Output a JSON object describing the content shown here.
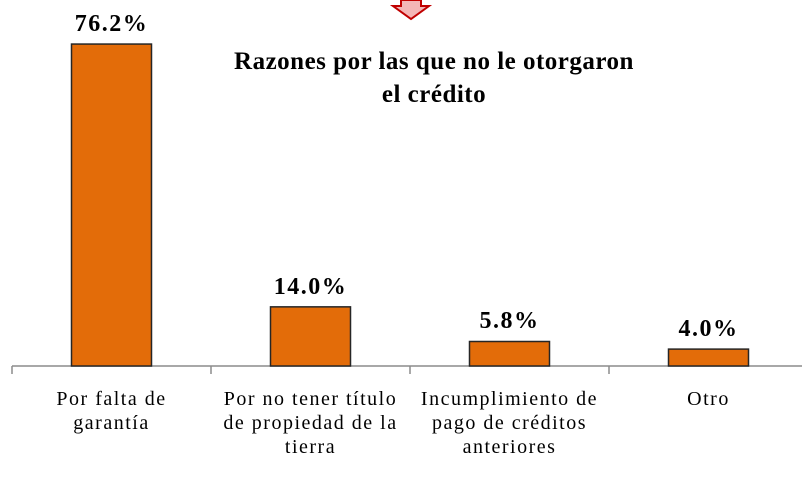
{
  "chart_data": {
    "type": "bar",
    "title": "Razones por las que no le otorgaron el crédito",
    "categories": [
      "Por falta de garantía",
      "Por no tener título de propiedad de la tierra",
      "Incumplimiento de pago de créditos anteriores",
      "Otro"
    ],
    "values": [
      76.2,
      14.0,
      5.8,
      4.0
    ],
    "value_labels": [
      "76.2%",
      "14.0%",
      "5.8%",
      "4.0%"
    ],
    "color": "#e36c09",
    "ylim": [
      0,
      80
    ]
  }
}
